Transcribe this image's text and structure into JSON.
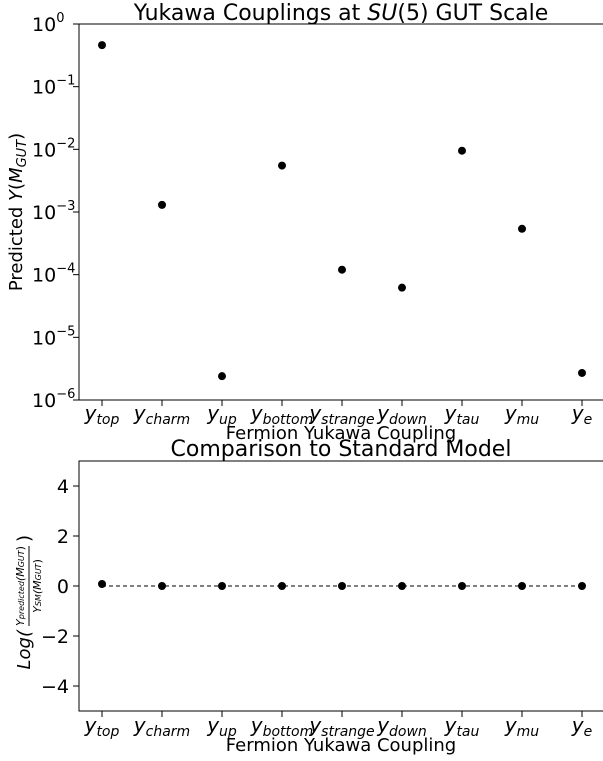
{
  "chart_data": [
    {
      "type": "scatter",
      "title_prefix": "Yukawa Couplings at ",
      "title_italic": "SU",
      "title_suffix": "(5) GUT Scale",
      "xlabel": "Fermion Yukawa Coupling",
      "ylabel_prefix": "Predicted ",
      "ylabel_var": "Y",
      "ylabel_open": "(",
      "ylabel_arg": "M",
      "ylabel_sub": "GUT",
      "ylabel_close": ")",
      "yscale": "log",
      "ylim": [
        1e-06,
        1
      ],
      "yticks": [
        {
          "value": 1,
          "base": "10",
          "exp": "0"
        },
        {
          "value": 0.1,
          "base": "10",
          "exp": "−1"
        },
        {
          "value": 0.01,
          "base": "10",
          "exp": "−2"
        },
        {
          "value": 0.001,
          "base": "10",
          "exp": "−3"
        },
        {
          "value": 0.0001,
          "base": "10",
          "exp": "−4"
        },
        {
          "value": 1e-05,
          "base": "10",
          "exp": "−5"
        },
        {
          "value": 1e-06,
          "base": "10",
          "exp": "−6"
        }
      ],
      "categories": [
        {
          "base": "y",
          "sub": "top"
        },
        {
          "base": "y",
          "sub": "charm"
        },
        {
          "base": "y",
          "sub": "up"
        },
        {
          "base": "y",
          "sub": "bottom"
        },
        {
          "base": "y",
          "sub": "strange"
        },
        {
          "base": "y",
          "sub": "down"
        },
        {
          "base": "y",
          "sub": "tau"
        },
        {
          "base": "y",
          "sub": "mu"
        },
        {
          "base": "y",
          "sub": "e"
        }
      ],
      "values": [
        0.46,
        0.0013,
        2.4e-06,
        0.0055,
        0.00012,
        6.2e-05,
        0.0095,
        0.00054,
        2.7e-06
      ],
      "marker_color": "#000000"
    },
    {
      "type": "scatter",
      "title": "Comparison to Standard Model",
      "xlabel": "Fermion Yukawa Coupling",
      "ylabel_prefix": "Log(",
      "ylabel_num_var": "Y",
      "ylabel_num_sub": "predicted",
      "ylabel_num_arg": "(M",
      "ylabel_num_argsub": "GUT",
      "ylabel_num_close": ")",
      "ylabel_den_var": "Y",
      "ylabel_den_sub": "SM",
      "ylabel_den_arg": "(M",
      "ylabel_den_argsub": "GUT",
      "ylabel_den_close": ")",
      "ylabel_suffix": ")",
      "ylim": [
        -5,
        5
      ],
      "yticks": [
        "4",
        "2",
        "0",
        "−2",
        "−4"
      ],
      "ytick_values": [
        4,
        2,
        0,
        -2,
        -4
      ],
      "reference_line": 0,
      "reference_line_style": "dashed",
      "categories": [
        {
          "base": "y",
          "sub": "top"
        },
        {
          "base": "y",
          "sub": "charm"
        },
        {
          "base": "y",
          "sub": "up"
        },
        {
          "base": "y",
          "sub": "bottom"
        },
        {
          "base": "y",
          "sub": "strange"
        },
        {
          "base": "y",
          "sub": "down"
        },
        {
          "base": "y",
          "sub": "tau"
        },
        {
          "base": "y",
          "sub": "mu"
        },
        {
          "base": "y",
          "sub": "e"
        }
      ],
      "values": [
        0.08,
        0,
        0,
        0,
        0,
        0,
        0,
        0,
        0
      ],
      "marker_color": "#000000"
    }
  ]
}
